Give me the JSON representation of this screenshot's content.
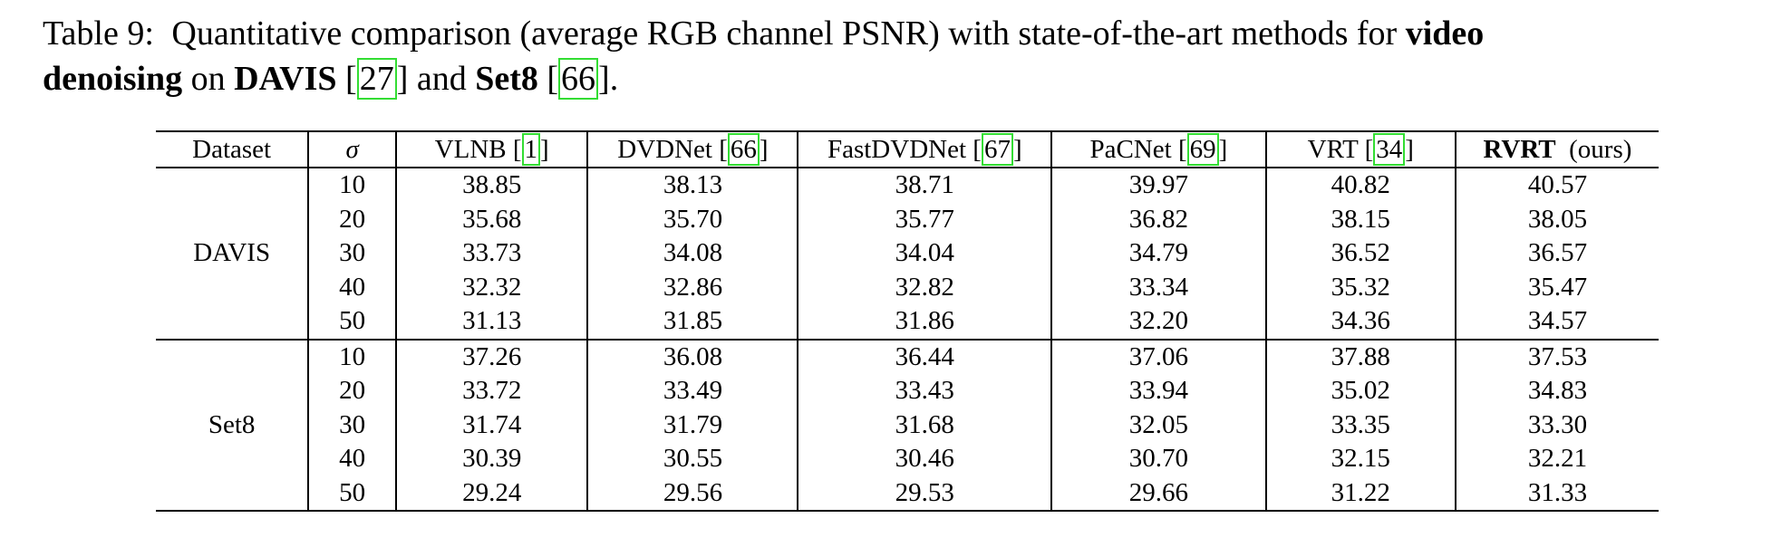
{
  "caption": {
    "label": "Table 9:",
    "line1_text": "Quantitative comparison (average RGB channel PSNR) with state-of-the-art methods for",
    "line1_bold": "video",
    "line2_bold1": "denoising",
    "line2_on": "on",
    "line2_bold2": "DAVIS",
    "cite_davis": "27",
    "line2_and": "and",
    "line2_bold3": "Set8",
    "cite_set8": "66",
    "line2_end": "."
  },
  "table": {
    "headers": {
      "dataset": "Dataset",
      "sigma": "σ",
      "vlnb": "VLNB",
      "vlnb_cite": "1",
      "dvdnet": "DVDNet",
      "dvdnet_cite": "66",
      "fastdvdnet": "FastDVDNet",
      "fastdvdnet_cite": "67",
      "pacnet": "PaCNet",
      "pacnet_cite": "69",
      "vrt": "VRT",
      "vrt_cite": "34",
      "rvrt": "RVRT",
      "rvrt_suffix": "(ours)"
    },
    "groups": [
      {
        "name": "DAVIS",
        "rows": [
          {
            "sigma": "10",
            "vlnb": "38.85",
            "dvdnet": "38.13",
            "fastdvdnet": "38.71",
            "pacnet": "39.97",
            "vrt": "40.82",
            "rvrt": "40.57"
          },
          {
            "sigma": "20",
            "vlnb": "35.68",
            "dvdnet": "35.70",
            "fastdvdnet": "35.77",
            "pacnet": "36.82",
            "vrt": "38.15",
            "rvrt": "38.05"
          },
          {
            "sigma": "30",
            "vlnb": "33.73",
            "dvdnet": "34.08",
            "fastdvdnet": "34.04",
            "pacnet": "34.79",
            "vrt": "36.52",
            "rvrt": "36.57"
          },
          {
            "sigma": "40",
            "vlnb": "32.32",
            "dvdnet": "32.86",
            "fastdvdnet": "32.82",
            "pacnet": "33.34",
            "vrt": "35.32",
            "rvrt": "35.47"
          },
          {
            "sigma": "50",
            "vlnb": "31.13",
            "dvdnet": "31.85",
            "fastdvdnet": "31.86",
            "pacnet": "32.20",
            "vrt": "34.36",
            "rvrt": "34.57"
          }
        ]
      },
      {
        "name": "Set8",
        "rows": [
          {
            "sigma": "10",
            "vlnb": "37.26",
            "dvdnet": "36.08",
            "fastdvdnet": "36.44",
            "pacnet": "37.06",
            "vrt": "37.88",
            "rvrt": "37.53"
          },
          {
            "sigma": "20",
            "vlnb": "33.72",
            "dvdnet": "33.49",
            "fastdvdnet": "33.43",
            "pacnet": "33.94",
            "vrt": "35.02",
            "rvrt": "34.83"
          },
          {
            "sigma": "30",
            "vlnb": "31.74",
            "dvdnet": "31.79",
            "fastdvdnet": "31.68",
            "pacnet": "32.05",
            "vrt": "33.35",
            "rvrt": "33.30"
          },
          {
            "sigma": "40",
            "vlnb": "30.39",
            "dvdnet": "30.55",
            "fastdvdnet": "30.46",
            "pacnet": "30.70",
            "vrt": "32.15",
            "rvrt": "32.21"
          },
          {
            "sigma": "50",
            "vlnb": "29.24",
            "dvdnet": "29.56",
            "fastdvdnet": "29.53",
            "pacnet": "29.66",
            "vrt": "31.22",
            "rvrt": "31.33"
          }
        ]
      }
    ]
  },
  "colors": {
    "citation_box": "#33dd33",
    "text": "#000000",
    "background": "#ffffff"
  }
}
